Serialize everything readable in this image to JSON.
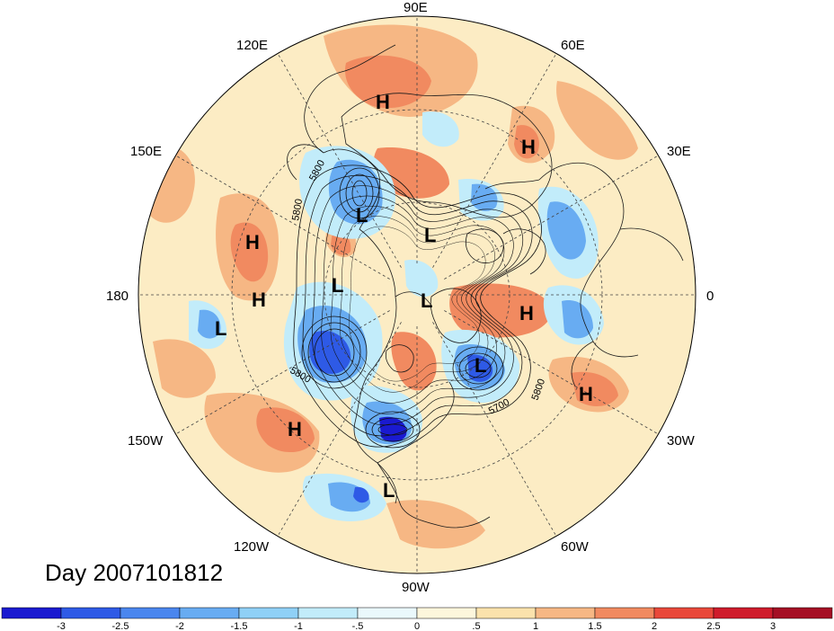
{
  "title": "Day 2007101812",
  "longitude_labels": [
    {
      "id": "90e",
      "text": "90E"
    },
    {
      "id": "60e",
      "text": "60E"
    },
    {
      "id": "30e",
      "text": "30E"
    },
    {
      "id": "0",
      "text": "0"
    },
    {
      "id": "30w",
      "text": "30W"
    },
    {
      "id": "60w",
      "text": "60W"
    },
    {
      "id": "90w",
      "text": "90W"
    },
    {
      "id": "120w",
      "text": "120W"
    },
    {
      "id": "150w",
      "text": "150W"
    },
    {
      "id": "180",
      "text": "180"
    },
    {
      "id": "150e",
      "text": "150E"
    },
    {
      "id": "120e",
      "text": "120E"
    }
  ],
  "pressure_centers": [
    {
      "text": "H"
    },
    {
      "text": "H"
    },
    {
      "text": "H"
    },
    {
      "text": "H"
    },
    {
      "text": "H"
    },
    {
      "text": "H"
    },
    {
      "text": "H"
    },
    {
      "text": "L"
    },
    {
      "text": "L"
    },
    {
      "text": "L"
    },
    {
      "text": "L"
    },
    {
      "text": "L"
    },
    {
      "text": "L"
    },
    {
      "text": "L"
    },
    {
      "text": "L"
    },
    {
      "text": "L"
    }
  ],
  "contour_labels": [
    "5800",
    "5800",
    "5800",
    "5700",
    "5800"
  ],
  "colorbar": {
    "ticks": [
      "-3",
      "-2.5",
      "-2",
      "-1.5",
      "-1",
      "-.5",
      "0",
      ".5",
      "1",
      "1.5",
      "2",
      "2.5",
      "3"
    ],
    "colors": [
      "#1a1ad0",
      "#2e5ae6",
      "#4a86ee",
      "#68acf2",
      "#8fd0f6",
      "#c2ecfa",
      "#eaf8fc",
      "#fdf6dc",
      "#fbe2ac",
      "#f6b784",
      "#f18a60",
      "#e9483a",
      "#cf1c2c",
      "#a50f24"
    ]
  },
  "map_colors": {
    "background": "#fcecc4",
    "warm_light": "#f6b784",
    "warm": "#f18a60",
    "warm_strong": "#e9483a",
    "cool_light": "#c2ecfa",
    "cool": "#68acf2",
    "cool_strong": "#2e5ae6",
    "cool_deep": "#1a1ad0"
  }
}
